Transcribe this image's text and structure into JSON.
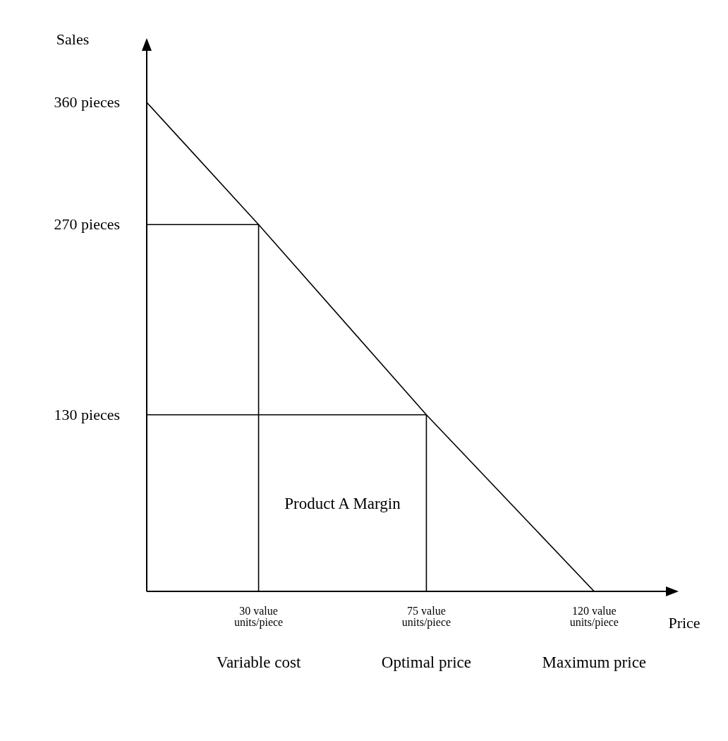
{
  "chart_data": {
    "type": "line",
    "xlabel": "Price",
    "ylabel": "Sales",
    "xlim": [
      0,
      140
    ],
    "ylim": [
      0,
      400
    ],
    "xticks": [
      {
        "value": 30,
        "label": "30 value units/piece"
      },
      {
        "value": 75,
        "label": "75 value units/piece"
      },
      {
        "value": 120,
        "label": "120 value units/piece"
      }
    ],
    "yticks": [
      {
        "value": 130,
        "label": "130 pieces"
      },
      {
        "value": 270,
        "label": "270 pieces"
      },
      {
        "value": 360,
        "label": "360 pieces"
      }
    ],
    "series": [
      {
        "color": "#000000",
        "x": [
          0,
          30,
          75,
          120
        ],
        "values": [
          360,
          270,
          130,
          0
        ]
      },
      {
        "color": "#000000",
        "x": [
          0,
          30,
          30
        ],
        "values": [
          270,
          270,
          0
        ]
      },
      {
        "color": "#000000",
        "x": [
          0,
          75,
          75
        ],
        "values": [
          130,
          130,
          0
        ]
      }
    ],
    "annotations": [
      "Product A Margin",
      "Variable cost",
      "Optimal price",
      "Maximum price"
    ],
    "marker": "none",
    "line_style": "solid"
  }
}
